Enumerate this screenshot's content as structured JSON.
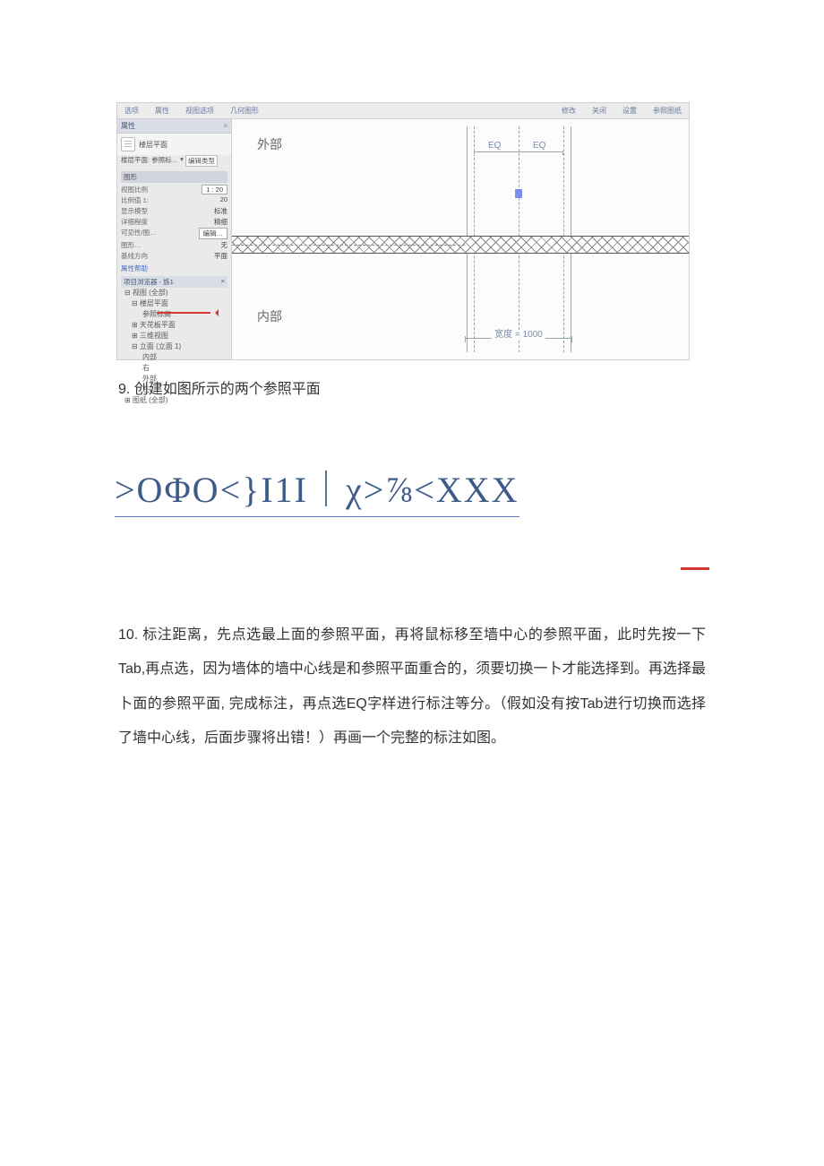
{
  "menu": {
    "items": [
      "选项",
      "属性",
      "视图选项",
      "几何图形",
      "",
      "修改",
      "",
      "关闭",
      "设置",
      "参照图纸",
      ""
    ]
  },
  "propertiesPanel": {
    "head": "属性",
    "titleRow": "楼层平面",
    "typeSelector": "楼层平面: 参照标…",
    "editTypeBtn": "编辑类型",
    "section1": {
      "title": "图形",
      "rows": [
        {
          "k": "视图比例",
          "v": "1 : 20"
        },
        {
          "k": "比例值 1:",
          "v": "20"
        },
        {
          "k": "显示模型",
          "v": "标准"
        },
        {
          "k": "详细程度",
          "v": "精细"
        },
        {
          "k": "可见性/图…",
          "v": "编辑…"
        },
        {
          "k": "图形…",
          "v": "无"
        },
        {
          "k": "基线方向",
          "v": "平面"
        }
      ]
    },
    "helpLink": "属性帮助"
  },
  "browser": {
    "head": "项目浏览器 - 族1",
    "tree": [
      {
        "t": "⊟ 视图 (全部)",
        "lvl": 0
      },
      {
        "t": "⊟ 楼层平面",
        "lvl": 1
      },
      {
        "t": "参照标高",
        "lvl": 2
      },
      {
        "t": "⊞ 天花板平面",
        "lvl": 1
      },
      {
        "t": "⊞ 三维视图",
        "lvl": 1
      },
      {
        "t": "⊟ 立面 (立面 1)",
        "lvl": 1
      },
      {
        "t": "内部",
        "lvl": 2
      },
      {
        "t": "右",
        "lvl": 2
      },
      {
        "t": "外部",
        "lvl": 2
      },
      {
        "t": "左",
        "lvl": 2
      },
      {
        "t": "⊞ 图纸 (全部)",
        "lvl": 0
      }
    ]
  },
  "canvas": {
    "outerLabel": "外部",
    "innerLabel": "内部",
    "eqLabel": "EQ",
    "widthDim": "宽度 = 1000"
  },
  "caption9": "9. 创建如图所示的两个参照平面",
  "glyphs": ">OΦO<}I1I｜χ>⅞<XXX",
  "para10": "10. 标注距离，先点选最上面的参照平面，再将鼠标移至墙中心的参照平面，此时先按一下Tab,再点选，因为墙体的墙中心线是和参照平面重合的，须要切换一卜才能选择到。再选择最卜面的参照平面, 完成标注，再点选EQ字样进行标注等分。（假如没有按Tab进行切换而选择了墙中心线，后面步骤将出错！）再画一个完整的标注如图。"
}
